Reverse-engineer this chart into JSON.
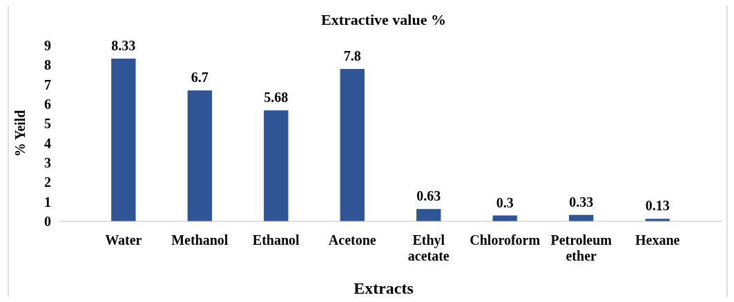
{
  "chart_data": {
    "type": "bar",
    "title": "Extractive value %",
    "xlabel": "Extracts",
    "ylabel": "% Yeild",
    "categories": [
      "Water",
      "Methanol",
      "Ethanol",
      "Acetone",
      "Ethyl acetate",
      "Chloroform",
      "Petroleum ether",
      "Hexane"
    ],
    "values": [
      8.33,
      6.7,
      5.68,
      7.8,
      0.63,
      0.3,
      0.33,
      0.13
    ],
    "color": "#2f5597",
    "ylim": [
      0,
      9
    ],
    "yticks": [
      0,
      1,
      2,
      3,
      4,
      5,
      6,
      7,
      8,
      9
    ],
    "data_labels": true
  }
}
